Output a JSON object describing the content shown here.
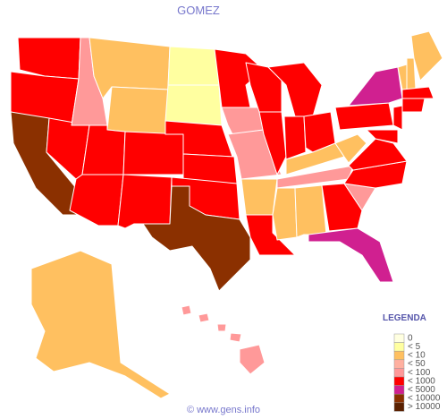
{
  "title": "GOMEZ",
  "legend": {
    "title": "LEGENDA",
    "items": [
      {
        "label": "0",
        "color": "#ffffe0"
      },
      {
        "label": "< 5",
        "color": "#ffffa0"
      },
      {
        "label": "< 10",
        "color": "#ffc060"
      },
      {
        "label": "< 50",
        "color": "#ffb0a0"
      },
      {
        "label": "< 100",
        "color": "#ff9999"
      },
      {
        "label": "< 1000",
        "color": "#ff0000"
      },
      {
        "label": "< 5000",
        "color": "#d02090"
      },
      {
        "label": "< 10000",
        "color": "#8b3000"
      },
      {
        "label": "> 10000",
        "color": "#5a2000"
      }
    ]
  },
  "footer": "© www.gens.info"
}
